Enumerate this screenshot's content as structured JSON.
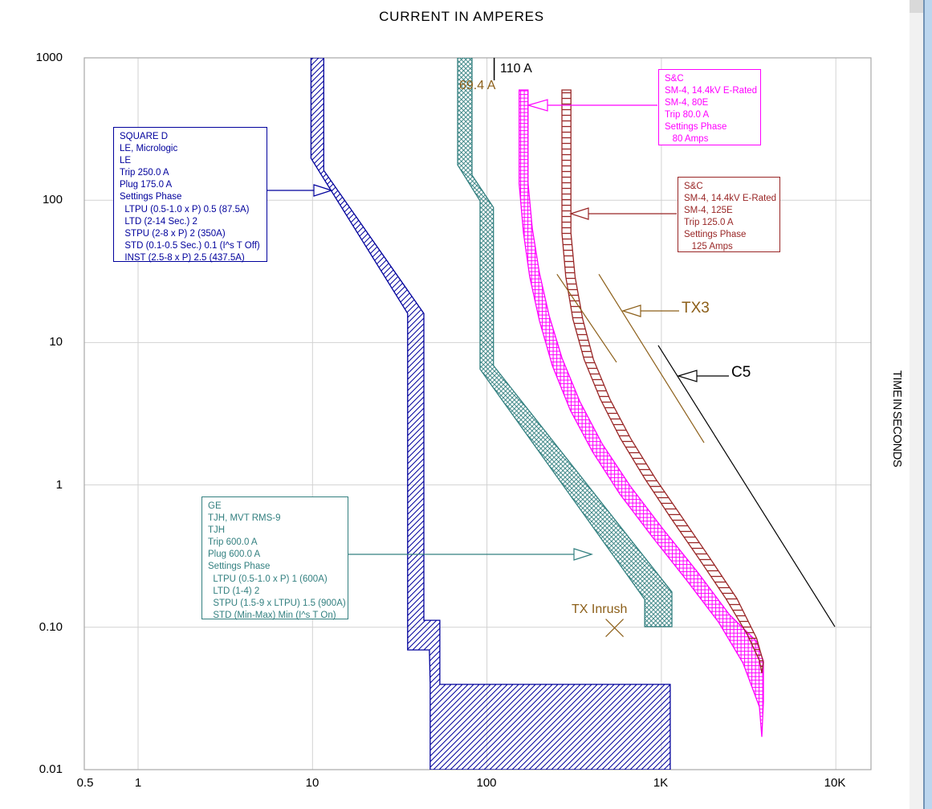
{
  "title": "CURRENT IN AMPERES",
  "axes": {
    "x_title": "CURRENT IN AMPERES",
    "y_title": "TIME IN SECONDS",
    "x_ticks": [
      "0.5",
      "1",
      "10",
      "100",
      "1K",
      "10K"
    ],
    "y_ticks": [
      "1000",
      "100",
      "10",
      "1",
      "0.10",
      "0.01"
    ]
  },
  "colors": {
    "navy": "#00009c",
    "teal": "#338080",
    "magenta": "#ff00ff",
    "darkred": "#992626",
    "brown": "#8c5f19",
    "black": "#000000",
    "grid": "#d2d2d2",
    "plot_border": "#a8a8a8",
    "scroll_track": "#f1f1f1",
    "scroll_button": "#d9d9d9",
    "window_edge_blue": "#bcd6ee",
    "window_edge_line": "#7293b5"
  },
  "devices": [
    {
      "name": "SQUARE D LE Micrologic",
      "color": "#00009c",
      "lines": [
        "SQUARE D",
        "LE, Micrologic",
        "LE",
        "Trip 250.0 A",
        "Plug 175.0 A",
        "Settings Phase",
        "  LTPU (0.5-1.0 x P) 0.5 (87.5A)",
        "  LTD (2-14 Sec.) 2",
        "  STPU (2-8 x P) 2 (350A)",
        "  STD (0.1-0.5 Sec.) 0.1 (I^s T Off)",
        "  INST (2.5-8 x P) 2.5 (437.5A)"
      ]
    },
    {
      "name": "GE TJH MVT RMS-9",
      "color": "#338080",
      "lines": [
        "GE",
        "TJH, MVT RMS-9",
        "TJH",
        "Trip 600.0 A",
        "Plug 600.0 A",
        "Settings Phase",
        "  LTPU (0.5-1.0 x P) 1 (600A)",
        "  LTD (1-4) 2",
        "  STPU (1.5-9 x LTPU) 1.5 (900A)",
        "  STD (Min-Max) Min (I^s T On)"
      ]
    },
    {
      "name": "S&C SM-4 80E",
      "color": "#ff00ff",
      "lines": [
        "S&C",
        "SM-4, 14.4kV E-Rated",
        "SM-4, 80E",
        "Trip 80.0 A",
        "Settings Phase",
        "   80 Amps"
      ]
    },
    {
      "name": "S&C SM-4 125E",
      "color": "#992626",
      "lines": [
        "S&C",
        "SM-4, 14.4kV E-Rated",
        "SM-4, 125E",
        "Trip 125.0 A",
        "Settings Phase",
        "   125 Amps"
      ]
    }
  ],
  "annotations": {
    "ref_110A": "110 A",
    "ref_69_4A": "69.4 A",
    "tx3": "TX3",
    "c5": "C5",
    "tx_inrush": "TX Inrush"
  },
  "chart_data": {
    "type": "line",
    "title": "CURRENT IN AMPERES",
    "xlabel": "CURRENT IN AMPERES",
    "ylabel": "TIME IN SECONDS",
    "x_scale": "log",
    "y_scale": "log",
    "xlim": [
      0.5,
      15000
    ],
    "ylim": [
      0.01,
      1000
    ],
    "grid": "decades",
    "series": [
      {
        "name": "SQUARE D LE Micrologic trip band",
        "kind": "band",
        "hatch": "diagonal",
        "color": "#00009c",
        "polygon_amps_seconds": [
          [
            9.8,
            1000
          ],
          [
            11.6,
            1000
          ],
          [
            11.6,
            162
          ],
          [
            43.5,
            16
          ],
          [
            43.5,
            0.112
          ],
          [
            53.7,
            0.112
          ],
          [
            53.7,
            0.0397
          ],
          [
            1124,
            0.0397
          ],
          [
            1124,
            0.01
          ],
          [
            47.3,
            0.01
          ],
          [
            47.3,
            0.0397
          ],
          [
            46.8,
            0.0693
          ],
          [
            35.1,
            0.0693
          ],
          [
            35.1,
            16
          ],
          [
            9.8,
            197
          ]
        ]
      },
      {
        "name": "GE TJH trip band",
        "kind": "band",
        "hatch": "cross",
        "color": "#338080",
        "polygon_amps_seconds": [
          [
            67.9,
            1000
          ],
          [
            82.1,
            1000
          ],
          [
            82.1,
            150
          ],
          [
            109,
            89
          ],
          [
            109,
            6.9
          ],
          [
            1149,
            0.177
          ],
          [
            1149,
            0.101
          ],
          [
            802,
            0.101
          ],
          [
            802,
            0.157
          ],
          [
            91.3,
            6.5
          ],
          [
            91.3,
            99
          ],
          [
            67.9,
            177
          ]
        ]
      },
      {
        "name": "S&C SM-4 80E fuse band",
        "kind": "band",
        "hatch": "grid",
        "color": "#ff00ff",
        "polygon_amps_seconds": [
          [
            153,
            595
          ],
          [
            153,
            130
          ],
          [
            162,
            58.8
          ],
          [
            176,
            28.9
          ],
          [
            200,
            14.2
          ],
          [
            237,
            6.9
          ],
          [
            300,
            3.36
          ],
          [
            403,
            1.71
          ],
          [
            579,
            0.86
          ],
          [
            888,
            0.43
          ],
          [
            1396,
            0.214
          ],
          [
            2133,
            0.108
          ],
          [
            2937,
            0.056
          ],
          [
            3646,
            0.0276
          ],
          [
            3766,
            0.017
          ],
          [
            3845,
            0.03
          ],
          [
            3845,
            0.058
          ],
          [
            3500,
            0.08
          ],
          [
            2452,
            0.123
          ],
          [
            1608,
            0.245
          ],
          [
            1016,
            0.494
          ],
          [
            662,
            0.983
          ],
          [
            457,
            1.95
          ],
          [
            341,
            3.85
          ],
          [
            269,
            7.8
          ],
          [
            227,
            15.5
          ],
          [
            200,
            30.8
          ],
          [
            182,
            63.2
          ],
          [
            172,
            132
          ],
          [
            172,
            595
          ]
        ]
      },
      {
        "name": "S&C SM-4 125E fuse band",
        "kind": "band",
        "hatch": "rungs",
        "color": "#992626",
        "polygon_amps_seconds": [
          [
            269,
            595
          ],
          [
            269,
            58.8
          ],
          [
            283,
            28.9
          ],
          [
            311,
            14.6
          ],
          [
            361,
            7.59
          ],
          [
            447,
            4.0
          ],
          [
            583,
            2.11
          ],
          [
            802,
            1.11
          ],
          [
            1136,
            0.583
          ],
          [
            1640,
            0.304
          ],
          [
            2342,
            0.159
          ],
          [
            3106,
            0.089
          ],
          [
            3646,
            0.0585
          ],
          [
            3766,
            0.0477
          ],
          [
            3845,
            0.0567
          ],
          [
            3519,
            0.0836
          ],
          [
            2710,
            0.159
          ],
          [
            1905,
            0.304
          ],
          [
            1325,
            0.583
          ],
          [
            925,
            1.11
          ],
          [
            668,
            2.11
          ],
          [
            507,
            4.0
          ],
          [
            408,
            7.59
          ],
          [
            354,
            14.6
          ],
          [
            320,
            28.9
          ],
          [
            303,
            58.8
          ],
          [
            303,
            595
          ]
        ]
      },
      {
        "name": "TX3 transformer damage curve",
        "kind": "segments",
        "color": "#8c5f19",
        "segments_amps_seconds": [
          [
            [
              252,
              30.2
            ],
            [
              553,
              7.27
            ]
          ],
          [
            [
              438,
              30.2
            ],
            [
              1756,
              1.98
            ]
          ]
        ]
      },
      {
        "name": "C5 cable damage curve",
        "kind": "segments",
        "color": "#000000",
        "segments_amps_seconds": [
          [
            [
              959,
              9.55
            ],
            [
              9870,
              0.101
            ]
          ]
        ]
      },
      {
        "name": "110 A reference line",
        "kind": "vtick",
        "color": "#000000",
        "amperes": 110,
        "s_top": 1000,
        "s_bottom": 695
      },
      {
        "name": "TX Inrush point",
        "kind": "x-marker",
        "color": "#8c5f19",
        "amperes": 539,
        "seconds": 0.099
      }
    ]
  }
}
